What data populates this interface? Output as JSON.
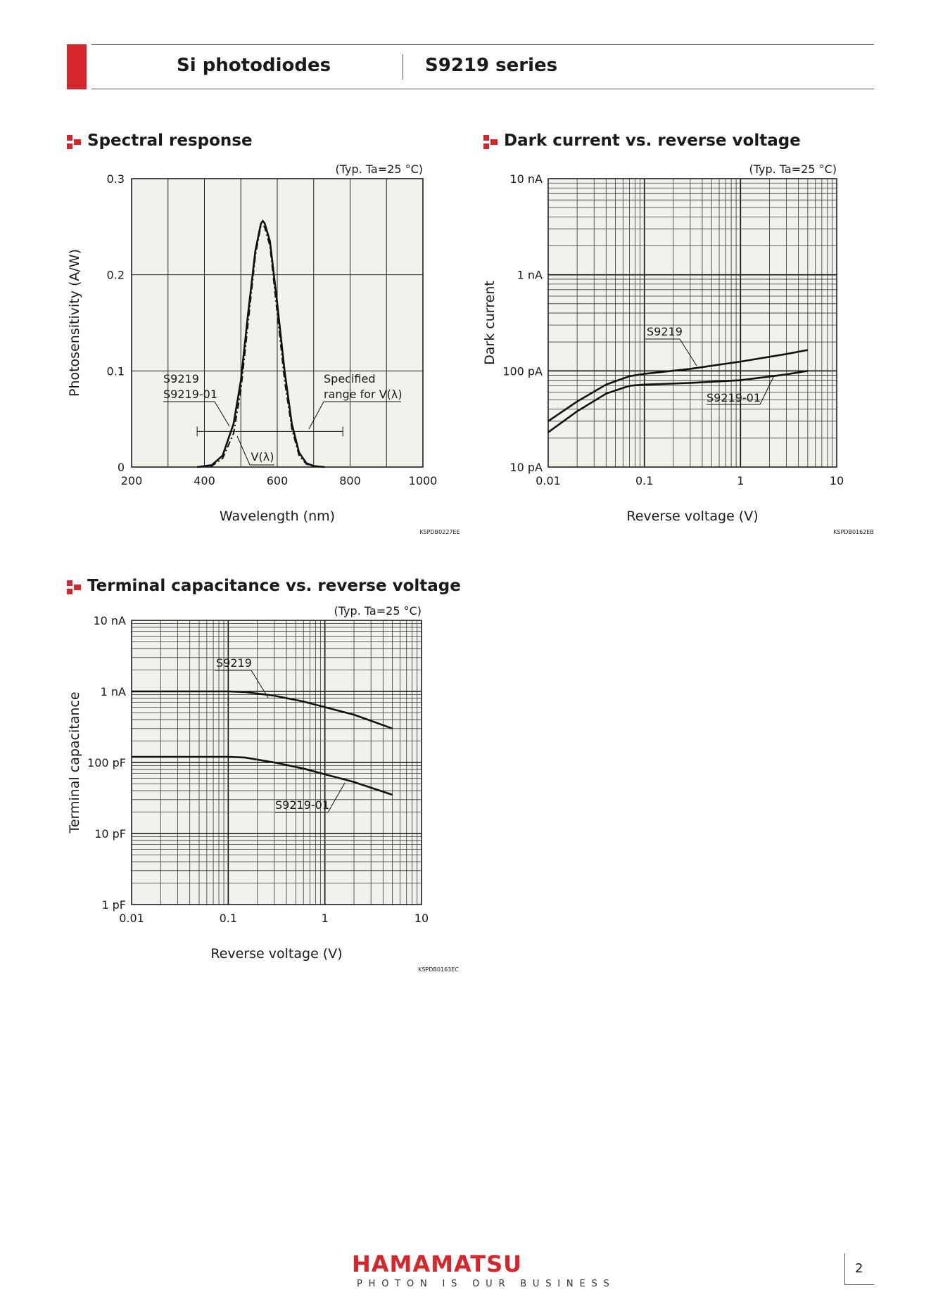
{
  "header": {
    "category": "Si photodiodes",
    "series": "S9219 series"
  },
  "sections": {
    "spectral": "Spectral response",
    "dark": "Dark current vs. reverse voltage",
    "capacitance": "Terminal capacitance vs. reverse voltage"
  },
  "colors": {
    "brand_red": "#d7262b",
    "plot_bg": "#f2f1ec",
    "grid": "#333333"
  },
  "chart_data": [
    {
      "id": "spectral",
      "type": "line",
      "title": "Spectral response",
      "condition": "(Typ. Ta=25 °C)",
      "xlabel": "Wavelength (nm)",
      "ylabel": "Photosensitivity (A/W)",
      "xlim": [
        200,
        1000
      ],
      "ylim": [
        0,
        0.3
      ],
      "xticks": [
        "200",
        "400",
        "600",
        "800",
        "1000"
      ],
      "yticks": [
        "0",
        "0.1",
        "0.2",
        "0.3"
      ],
      "code": "KSPDB0227EE",
      "series": [
        {
          "name": "S9219 / S9219-01",
          "x": [
            380,
            420,
            450,
            480,
            500,
            520,
            540,
            555,
            560,
            565,
            580,
            600,
            620,
            640,
            660,
            680,
            700,
            730
          ],
          "y": [
            0.0,
            0.002,
            0.012,
            0.045,
            0.09,
            0.16,
            0.225,
            0.253,
            0.256,
            0.254,
            0.235,
            0.17,
            0.1,
            0.045,
            0.015,
            0.004,
            0.001,
            0.0
          ]
        },
        {
          "name": "V(λ)",
          "x": [
            380,
            420,
            450,
            480,
            500,
            520,
            540,
            555,
            565,
            580,
            600,
            620,
            640,
            660,
            680,
            700,
            730
          ],
          "y": [
            0.0,
            0.001,
            0.009,
            0.035,
            0.08,
            0.15,
            0.22,
            0.251,
            0.25,
            0.23,
            0.16,
            0.09,
            0.04,
            0.012,
            0.003,
            0.001,
            0.0
          ]
        }
      ],
      "annotations": {
        "s9219": "S9219",
        "s9219_01": "S9219-01",
        "specified": "Specified",
        "range": "range for V(λ)",
        "vlambda": "V(λ)",
        "range_nm": [
          380,
          780
        ]
      }
    },
    {
      "id": "dark",
      "type": "line",
      "title": "Dark current vs. reverse voltage",
      "condition": "(Typ. Ta=25 °C)",
      "xlabel": "Reverse voltage (V)",
      "ylabel": "Dark current",
      "xscale": "log",
      "yscale": "log",
      "xlim": [
        0.01,
        10
      ],
      "ylim_labels": [
        "10 pA",
        "100 pA",
        "1 nA",
        "10 nA"
      ],
      "xticks": [
        "0.01",
        "0.1",
        "1",
        "10"
      ],
      "code": "KSPDB0162EB",
      "series": [
        {
          "name": "S9219",
          "x": [
            0.01,
            0.02,
            0.04,
            0.07,
            0.1,
            0.3,
            1,
            3,
            5
          ],
          "y_pA": [
            30,
            48,
            72,
            88,
            93,
            105,
            125,
            150,
            165
          ]
        },
        {
          "name": "S9219-01",
          "x": [
            0.01,
            0.02,
            0.04,
            0.07,
            0.1,
            0.3,
            1,
            3,
            5
          ],
          "y_pA": [
            23,
            38,
            58,
            70,
            72,
            75,
            80,
            92,
            100
          ]
        }
      ]
    },
    {
      "id": "capacitance",
      "type": "line",
      "title": "Terminal capacitance vs. reverse voltage",
      "condition": "(Typ. Ta=25 °C)",
      "xlabel": "Reverse voltage (V)",
      "ylabel": "Terminal capacitance",
      "xscale": "log",
      "yscale": "log",
      "xlim": [
        0.01,
        10
      ],
      "ylim_labels": [
        "1 pF",
        "10 pF",
        "100 pF",
        "1 nA",
        "10 nA"
      ],
      "xticks": [
        "0.01",
        "0.1",
        "1",
        "10"
      ],
      "code": "KSPDB0163EC",
      "series": [
        {
          "name": "S9219",
          "x": [
            0.01,
            0.05,
            0.1,
            0.15,
            0.3,
            0.6,
            1,
            2,
            5
          ],
          "y_pF": [
            1000,
            1000,
            1000,
            980,
            870,
            720,
            600,
            470,
            300
          ]
        },
        {
          "name": "S9219-01",
          "x": [
            0.01,
            0.05,
            0.1,
            0.15,
            0.3,
            0.6,
            1,
            2,
            5
          ],
          "y_pF": [
            120,
            120,
            120,
            117,
            100,
            82,
            68,
            53,
            35
          ]
        }
      ]
    }
  ],
  "footer": {
    "brand": "HAMAMATSU",
    "tagline": "PHOTON IS OUR BUSINESS",
    "page": "2"
  }
}
